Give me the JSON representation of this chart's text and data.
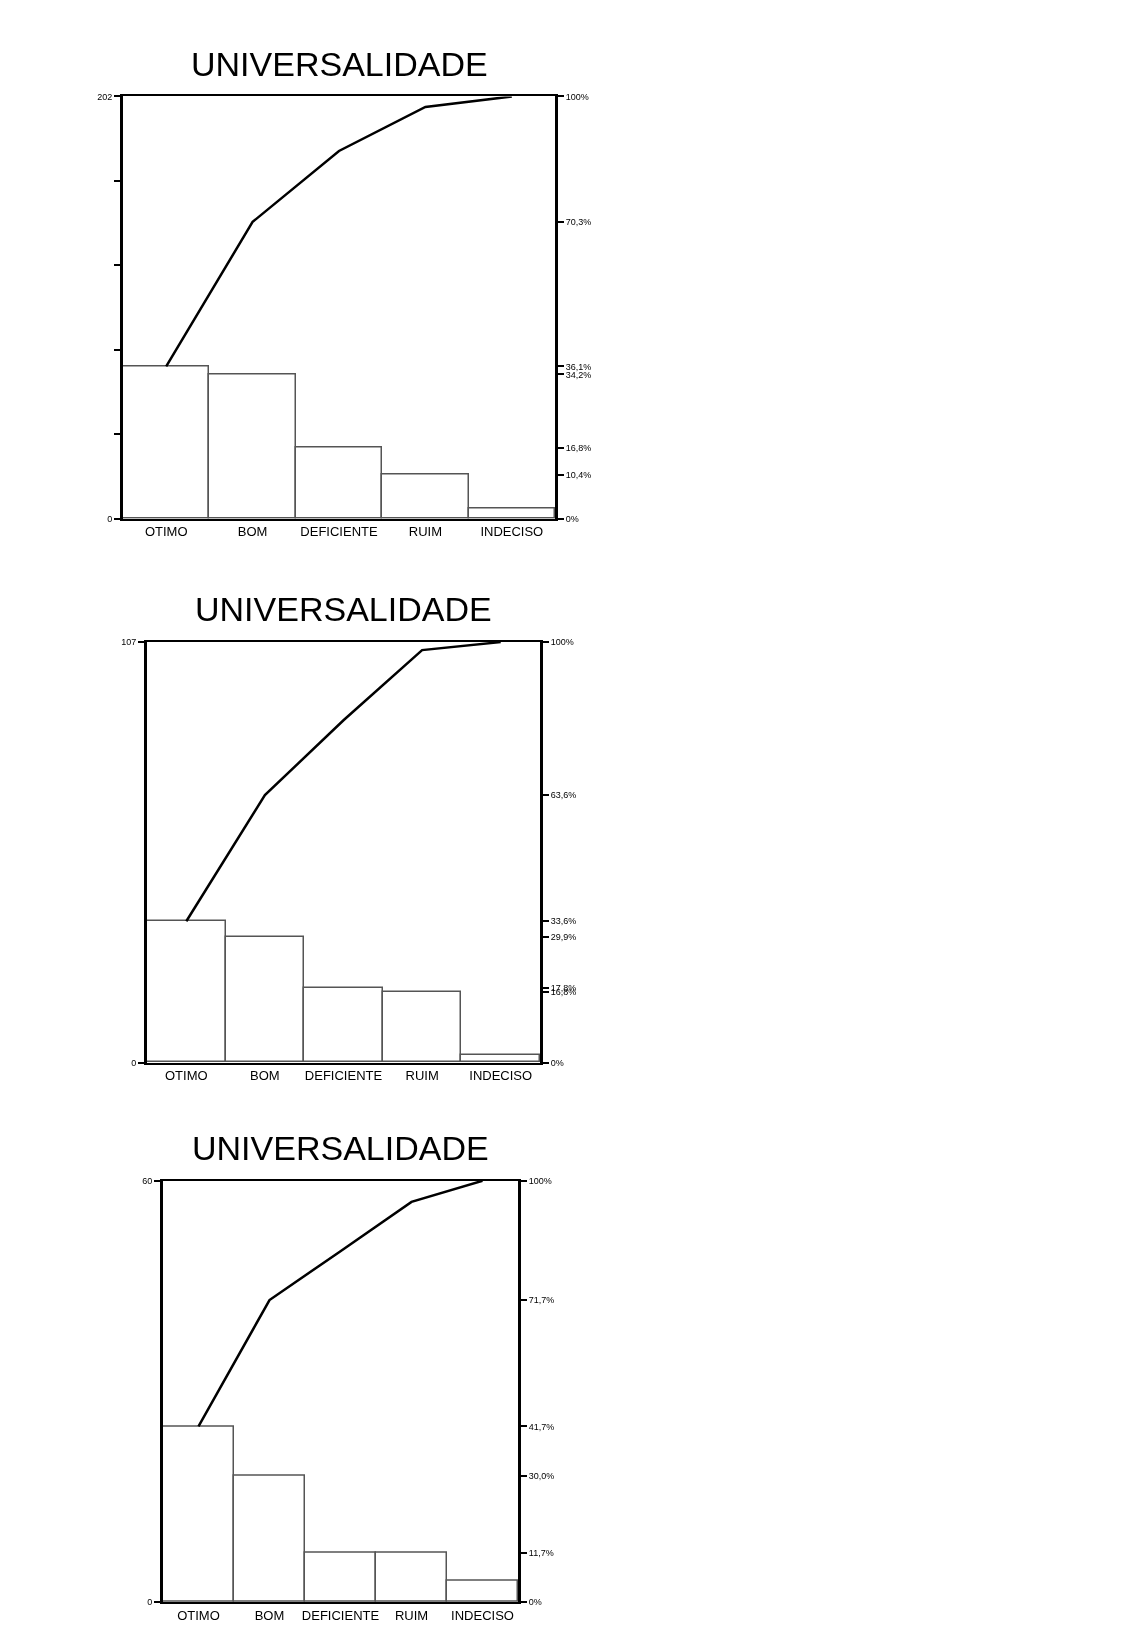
{
  "chart_data": [
    {
      "type": "bar",
      "title": "UNIVERSALIDADE",
      "categories": [
        "OTIMO",
        "BOM",
        "DEFICIENTE",
        "RUIM",
        "INDECISO"
      ],
      "series": [
        {
          "color": "#ffffff",
          "values": [
            73,
            69,
            34,
            21,
            5
          ]
        },
        {
          "type": "line",
          "axis": "y2",
          "color": "#000000",
          "values": [
            36.1,
            70.3,
            87.1,
            97.5,
            100
          ]
        }
      ],
      "ylim": [
        0,
        202
      ],
      "yticks": [
        0,
        {
          "value": 40.4,
          "label": null
        },
        {
          "value": 80.8,
          "label": null
        },
        {
          "value": 121.2,
          "label": null
        },
        {
          "value": 161.6,
          "label": null
        },
        202
      ],
      "y2lim": [
        0,
        100
      ],
      "y2ticks": [
        {
          "value": 0,
          "label": "0%"
        },
        {
          "value": 10.4,
          "label": "10,4%"
        },
        {
          "value": 16.8,
          "label": "16,8%"
        },
        {
          "value": 34.2,
          "label": "34,2%"
        },
        {
          "value": 36.1,
          "label": "36,1%"
        },
        {
          "value": 70.3,
          "label": "70,3%"
        },
        {
          "value": 100,
          "label": "100%"
        }
      ],
      "marker": "none",
      "line_style": "solid"
    },
    {
      "type": "bar",
      "title": "UNIVERSALIDADE",
      "categories": [
        "OTIMO",
        "BOM",
        "DEFICIENTE",
        "RUIM",
        "INDECISO"
      ],
      "series": [
        {
          "color": "#ffffff",
          "values": [
            36,
            32,
            19,
            18,
            2
          ]
        },
        {
          "type": "line",
          "axis": "y2",
          "color": "#000000",
          "values": [
            33.6,
            63.6,
            81.4,
            98.1,
            100
          ]
        }
      ],
      "ylim": [
        0,
        107
      ],
      "yticks": [
        0,
        107
      ],
      "y2lim": [
        0,
        100
      ],
      "y2ticks": [
        {
          "value": 0,
          "label": "0%"
        },
        {
          "value": 16.8,
          "label": "16,8%"
        },
        {
          "value": 17.8,
          "label": "17,8%"
        },
        {
          "value": 29.9,
          "label": "29,9%"
        },
        {
          "value": 33.6,
          "label": "33,6%"
        },
        {
          "value": 63.6,
          "label": "63,6%"
        },
        {
          "value": 100,
          "label": "100%"
        }
      ],
      "marker": "none",
      "line_style": "solid"
    },
    {
      "type": "bar",
      "title": "UNIVERSALIDADE",
      "categories": [
        "OTIMO",
        "BOM",
        "DEFICIENTE",
        "RUIM",
        "INDECISO"
      ],
      "series": [
        {
          "color": "#ffffff",
          "values": [
            25,
            18,
            7,
            7,
            3
          ]
        },
        {
          "type": "line",
          "axis": "y2",
          "color": "#000000",
          "values": [
            41.7,
            71.7,
            83.3,
            95,
            100
          ]
        }
      ],
      "ylim": [
        0,
        60
      ],
      "yticks": [
        0,
        60
      ],
      "y2lim": [
        0,
        100
      ],
      "y2ticks": [
        {
          "value": 0,
          "label": "0%"
        },
        {
          "value": 11.7,
          "label": "11,7%"
        },
        {
          "value": 30.0,
          "label": "30,0%"
        },
        {
          "value": 41.7,
          "label": "41,7%"
        },
        {
          "value": 71.7,
          "label": "71,7%"
        },
        {
          "value": 100,
          "label": "100%"
        }
      ],
      "marker": "none",
      "line_style": "solid"
    }
  ]
}
